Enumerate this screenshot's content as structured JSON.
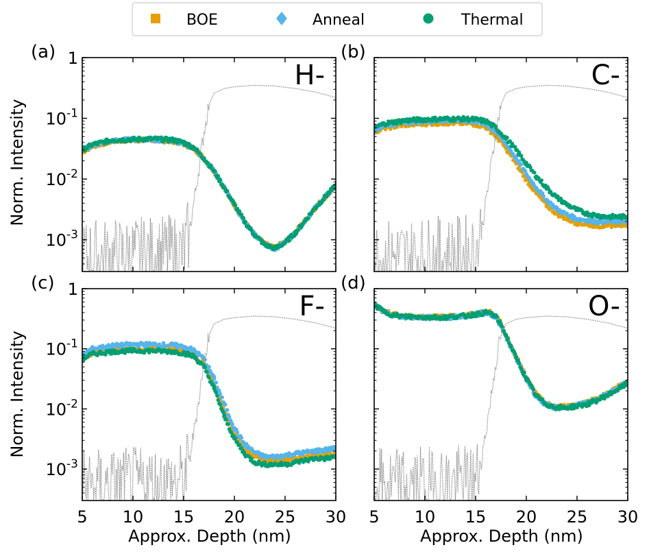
{
  "legend": {
    "entries": [
      {
        "label": "BOE",
        "marker": "square",
        "color": "#E69F00"
      },
      {
        "label": "Anneal",
        "marker": "diamond",
        "color": "#56B4E9"
      },
      {
        "label": "Thermal",
        "marker": "circle",
        "color": "#009E73"
      }
    ]
  },
  "chart_data": [
    {
      "type": "line",
      "panel": "(a)",
      "ion": "H-",
      "xlabel": "",
      "ylabel": "Norm. Intensity",
      "yscale": "log",
      "xlim": [
        5,
        30
      ],
      "ylim": [
        0.0003,
        1
      ],
      "x_ticks": [
        "5",
        "10",
        "15",
        "20",
        "25",
        "30"
      ],
      "y_ticks": [
        "10-3",
        "10-2",
        "10-1",
        "1"
      ],
      "series": [
        {
          "name": "BOE",
          "x": [
            5,
            6,
            8,
            10,
            12,
            14,
            15,
            16,
            17,
            18,
            19,
            20,
            21,
            22,
            23,
            24,
            25,
            26,
            27,
            28,
            29,
            30
          ],
          "y": [
            0.028,
            0.035,
            0.042,
            0.044,
            0.044,
            0.042,
            0.038,
            0.032,
            0.022,
            0.0135,
            0.0072,
            0.0038,
            0.002,
            0.0012,
            0.00085,
            0.00075,
            0.00092,
            0.0013,
            0.0021,
            0.0034,
            0.0052,
            0.0078
          ]
        },
        {
          "name": "Anneal",
          "x": [
            5,
            6,
            8,
            10,
            12,
            14,
            15,
            16,
            17,
            18,
            19,
            20,
            21,
            22,
            23,
            24,
            25,
            26,
            27,
            28,
            29,
            30
          ],
          "y": [
            0.029,
            0.036,
            0.043,
            0.045,
            0.045,
            0.043,
            0.039,
            0.033,
            0.022,
            0.0135,
            0.0072,
            0.0038,
            0.002,
            0.0012,
            0.00083,
            0.00072,
            0.0009,
            0.0013,
            0.0021,
            0.0034,
            0.0052,
            0.0078
          ]
        },
        {
          "name": "Thermal",
          "x": [
            5,
            6,
            8,
            10,
            12,
            14,
            15,
            16,
            17,
            18,
            19,
            20,
            21,
            22,
            23,
            24,
            25,
            26,
            27,
            28,
            29,
            30
          ],
          "y": [
            0.03,
            0.037,
            0.044,
            0.045,
            0.046,
            0.044,
            0.04,
            0.033,
            0.022,
            0.0135,
            0.0072,
            0.0038,
            0.002,
            0.0012,
            0.00083,
            0.00072,
            0.0009,
            0.0013,
            0.0021,
            0.0034,
            0.0052,
            0.0078
          ]
        },
        {
          "name": "reference",
          "x": [
            5,
            15,
            15.5,
            16,
            16.5,
            17,
            17.5,
            18,
            19,
            20,
            21,
            22,
            24,
            26,
            28,
            30
          ],
          "y": [
            0.0005,
            0.0006,
            0.0012,
            0.004,
            0.015,
            0.06,
            0.17,
            0.26,
            0.31,
            0.33,
            0.34,
            0.35,
            0.34,
            0.31,
            0.27,
            0.22
          ]
        }
      ]
    },
    {
      "type": "line",
      "panel": "(b)",
      "ion": "C-",
      "xlabel": "",
      "ylabel": "",
      "yscale": "log",
      "xlim": [
        5,
        30
      ],
      "ylim": [
        0.0003,
        1
      ],
      "x_ticks": [
        "5",
        "10",
        "15",
        "20",
        "25",
        "30"
      ],
      "y_ticks": [],
      "series": [
        {
          "name": "BOE",
          "x": [
            5,
            6,
            8,
            10,
            12,
            14,
            15,
            16,
            17,
            18,
            19,
            20,
            21,
            22,
            23,
            24,
            25,
            26,
            27,
            28,
            29,
            30
          ],
          "y": [
            0.06,
            0.07,
            0.078,
            0.082,
            0.084,
            0.083,
            0.08,
            0.072,
            0.052,
            0.032,
            0.018,
            0.0098,
            0.0058,
            0.0037,
            0.0027,
            0.0022,
            0.0019,
            0.0018,
            0.0017,
            0.0017,
            0.0018,
            0.0018
          ]
        },
        {
          "name": "Anneal",
          "x": [
            5,
            6,
            8,
            10,
            12,
            14,
            15,
            16,
            17,
            18,
            19,
            20,
            21,
            22,
            23,
            24,
            25,
            26,
            27,
            28,
            29,
            30
          ],
          "y": [
            0.065,
            0.076,
            0.086,
            0.09,
            0.092,
            0.092,
            0.089,
            0.08,
            0.06,
            0.038,
            0.022,
            0.012,
            0.0071,
            0.0045,
            0.0032,
            0.0026,
            0.0022,
            0.0021,
            0.002,
            0.002,
            0.002,
            0.002
          ]
        },
        {
          "name": "Thermal",
          "x": [
            5,
            6,
            8,
            10,
            12,
            14,
            15,
            16,
            17,
            18,
            19,
            20,
            21,
            22,
            23,
            24,
            25,
            26,
            27,
            28,
            29,
            30
          ],
          "y": [
            0.07,
            0.082,
            0.092,
            0.096,
            0.098,
            0.098,
            0.096,
            0.09,
            0.07,
            0.047,
            0.03,
            0.018,
            0.011,
            0.0072,
            0.005,
            0.0038,
            0.0031,
            0.0027,
            0.0025,
            0.0024,
            0.0024,
            0.0024
          ]
        },
        {
          "name": "reference",
          "x": [
            5,
            15,
            15.5,
            16,
            16.5,
            17,
            17.5,
            18,
            19,
            20,
            21,
            22,
            24,
            26,
            28,
            30
          ],
          "y": [
            0.0005,
            0.0006,
            0.0012,
            0.004,
            0.015,
            0.06,
            0.17,
            0.26,
            0.31,
            0.33,
            0.34,
            0.35,
            0.34,
            0.31,
            0.27,
            0.22
          ]
        }
      ]
    },
    {
      "type": "line",
      "panel": "(c)",
      "ion": "F-",
      "xlabel": "Approx. Depth (nm)",
      "ylabel": "Norm. Intensity",
      "yscale": "log",
      "xlim": [
        5,
        30
      ],
      "ylim": [
        0.0003,
        1
      ],
      "x_ticks": [
        "5",
        "10",
        "15",
        "20",
        "25",
        "30"
      ],
      "y_ticks": [
        "10-3",
        "10-2",
        "10-1",
        "1"
      ],
      "series": [
        {
          "name": "BOE",
          "x": [
            5,
            6,
            8,
            10,
            12,
            14,
            15,
            16,
            17,
            18,
            19,
            20,
            21,
            22,
            23,
            24,
            25,
            26,
            27,
            28,
            29,
            30
          ],
          "y": [
            0.07,
            0.085,
            0.095,
            0.098,
            0.098,
            0.095,
            0.09,
            0.08,
            0.055,
            0.025,
            0.009,
            0.0038,
            0.0022,
            0.0016,
            0.0014,
            0.0014,
            0.0014,
            0.0015,
            0.0016,
            0.0017,
            0.0017,
            0.0018
          ]
        },
        {
          "name": "Anneal",
          "x": [
            5,
            6,
            8,
            10,
            12,
            14,
            15,
            16,
            17,
            18,
            19,
            20,
            21,
            22,
            23,
            24,
            25,
            26,
            27,
            28,
            29,
            30
          ],
          "y": [
            0.08,
            0.1,
            0.112,
            0.118,
            0.118,
            0.115,
            0.108,
            0.095,
            0.068,
            0.032,
            0.012,
            0.0048,
            0.0026,
            0.0019,
            0.0016,
            0.0016,
            0.0017,
            0.0018,
            0.0019,
            0.002,
            0.0021,
            0.0022
          ]
        },
        {
          "name": "Thermal",
          "x": [
            5,
            6,
            8,
            10,
            12,
            14,
            15,
            16,
            17,
            18,
            19,
            20,
            21,
            22,
            23,
            24,
            25,
            26,
            27,
            28,
            29,
            30
          ],
          "y": [
            0.068,
            0.082,
            0.09,
            0.093,
            0.093,
            0.09,
            0.085,
            0.075,
            0.05,
            0.022,
            0.0075,
            0.0032,
            0.0018,
            0.0013,
            0.0012,
            0.0012,
            0.0012,
            0.0013,
            0.0014,
            0.0015,
            0.0015,
            0.0016
          ]
        },
        {
          "name": "reference",
          "x": [
            5,
            15,
            15.5,
            16,
            16.5,
            17,
            17.5,
            18,
            19,
            20,
            21,
            22,
            24,
            26,
            28,
            30
          ],
          "y": [
            0.0005,
            0.0006,
            0.0012,
            0.004,
            0.015,
            0.06,
            0.17,
            0.26,
            0.31,
            0.33,
            0.34,
            0.35,
            0.34,
            0.31,
            0.27,
            0.22
          ]
        }
      ]
    },
    {
      "type": "line",
      "panel": "(d)",
      "ion": "O-",
      "xlabel": "Approx. Depth (nm)",
      "ylabel": "",
      "yscale": "log",
      "xlim": [
        5,
        30
      ],
      "ylim": [
        0.0003,
        1
      ],
      "x_ticks": [
        "5",
        "10",
        "15",
        "20",
        "25",
        "30"
      ],
      "y_ticks": [],
      "series": [
        {
          "name": "BOE",
          "x": [
            5,
            6,
            7,
            8,
            10,
            12,
            14,
            15,
            16,
            16.5,
            17,
            17.5,
            18,
            19,
            20,
            21,
            22,
            23,
            24,
            25,
            26,
            27,
            28,
            29,
            30
          ],
          "y": [
            0.55,
            0.42,
            0.37,
            0.35,
            0.34,
            0.34,
            0.36,
            0.38,
            0.41,
            0.4,
            0.35,
            0.26,
            0.17,
            0.074,
            0.033,
            0.017,
            0.012,
            0.011,
            0.011,
            0.012,
            0.013,
            0.015,
            0.018,
            0.023,
            0.029
          ]
        },
        {
          "name": "Anneal",
          "x": [
            5,
            6,
            7,
            8,
            10,
            12,
            14,
            15,
            16,
            16.5,
            17,
            17.5,
            18,
            19,
            20,
            21,
            22,
            23,
            24,
            25,
            26,
            27,
            28,
            29,
            30
          ],
          "y": [
            0.53,
            0.41,
            0.36,
            0.34,
            0.33,
            0.33,
            0.35,
            0.37,
            0.4,
            0.38,
            0.33,
            0.24,
            0.16,
            0.07,
            0.031,
            0.016,
            0.0115,
            0.0105,
            0.0105,
            0.0115,
            0.0125,
            0.0145,
            0.0175,
            0.022,
            0.028
          ]
        },
        {
          "name": "Thermal",
          "x": [
            5,
            6,
            7,
            8,
            10,
            12,
            14,
            15,
            16,
            16.5,
            17,
            17.5,
            18,
            19,
            20,
            21,
            22,
            23,
            24,
            25,
            26,
            27,
            28,
            29,
            30
          ],
          "y": [
            0.54,
            0.41,
            0.36,
            0.345,
            0.335,
            0.335,
            0.355,
            0.375,
            0.4,
            0.39,
            0.34,
            0.25,
            0.165,
            0.071,
            0.032,
            0.0165,
            0.0118,
            0.0105,
            0.0105,
            0.0112,
            0.012,
            0.014,
            0.017,
            0.021,
            0.027
          ]
        },
        {
          "name": "reference",
          "x": [
            5,
            15,
            15.5,
            16,
            16.5,
            17,
            17.5,
            18,
            19,
            20,
            21,
            22,
            24,
            26,
            28,
            30
          ],
          "y": [
            0.0005,
            0.0006,
            0.0012,
            0.004,
            0.015,
            0.06,
            0.17,
            0.26,
            0.31,
            0.33,
            0.34,
            0.35,
            0.34,
            0.31,
            0.27,
            0.22
          ]
        }
      ]
    }
  ]
}
